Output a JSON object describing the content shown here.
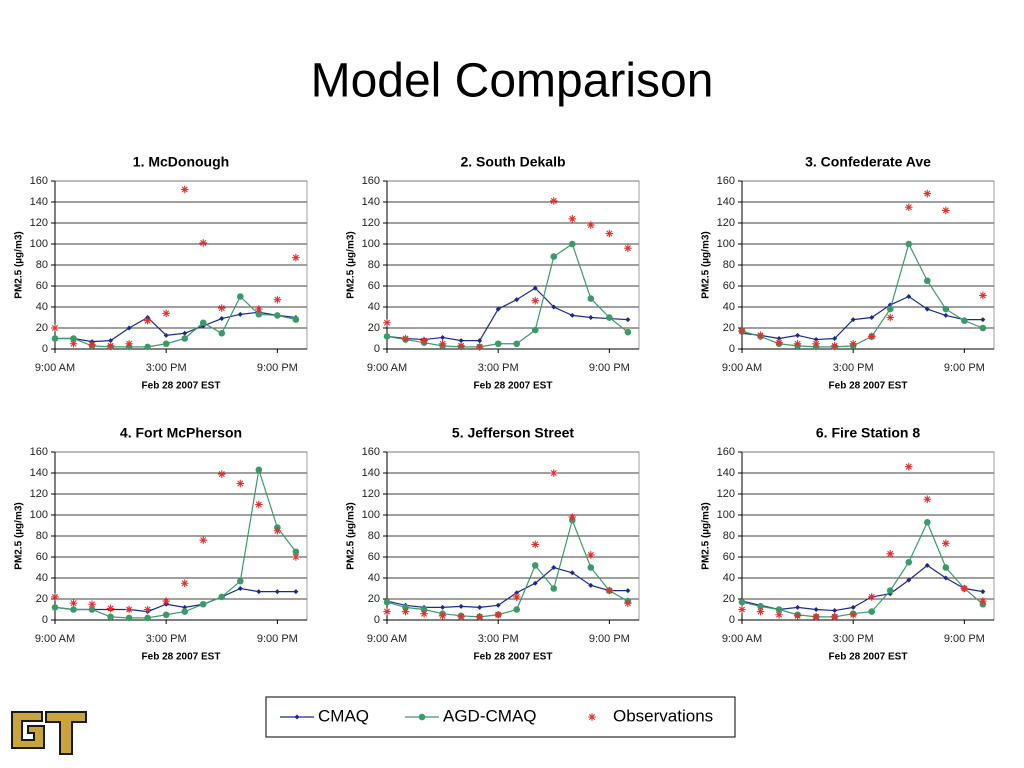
{
  "title": "Model Comparison",
  "chart_data": [
    {
      "type": "line",
      "title": "1. McDonough",
      "x_label": "Feb 28 2007 EST",
      "y_label": "PM2.5 (µg/m3)",
      "x": [
        9,
        10,
        11,
        12,
        13,
        14,
        15,
        16,
        17,
        18,
        19,
        20,
        21,
        22
      ],
      "xlim": [
        9,
        22.6
      ],
      "xticks": [
        {
          "value": 9,
          "label": "9:00 AM"
        },
        {
          "value": 15,
          "label": "3:00 PM"
        },
        {
          "value": 21,
          "label": "9:00 PM"
        }
      ],
      "ylim": [
        0,
        160
      ],
      "yticks": [
        0,
        20,
        40,
        60,
        80,
        100,
        120,
        140,
        160
      ],
      "grid": true,
      "series": [
        {
          "name": "CMAQ",
          "color": "#1c2a8a",
          "marker": "diamond",
          "values": [
            10,
            10,
            7,
            8,
            20,
            30,
            13,
            15,
            22,
            29,
            33,
            35,
            32,
            30
          ]
        },
        {
          "name": "AGD-CMAQ",
          "color": "#3c9a6a",
          "marker": "circle",
          "values": [
            10,
            10,
            3,
            2,
            2,
            2,
            5,
            10,
            25,
            15,
            50,
            33,
            32,
            28
          ]
        },
        {
          "name": "Observations",
          "color": "#e03030",
          "marker": "asterisk",
          "line": false,
          "values": [
            20,
            5,
            4,
            3,
            5,
            27,
            34,
            152,
            101,
            39,
            null,
            38,
            47,
            87
          ]
        }
      ]
    },
    {
      "type": "line",
      "title": "2. South Dekalb",
      "x_label": "Feb 28 2007 EST",
      "y_label": "PM2.5 (µg/m3)",
      "x": [
        9,
        10,
        11,
        12,
        13,
        14,
        15,
        16,
        17,
        18,
        19,
        20,
        21,
        22
      ],
      "xlim": [
        9,
        22.6
      ],
      "xticks": [
        {
          "value": 9,
          "label": "9:00 AM"
        },
        {
          "value": 15,
          "label": "3:00 PM"
        },
        {
          "value": 21,
          "label": "9:00 PM"
        }
      ],
      "ylim": [
        0,
        160
      ],
      "yticks": [
        0,
        20,
        40,
        60,
        80,
        100,
        120,
        140,
        160
      ],
      "grid": true,
      "series": [
        {
          "name": "CMAQ",
          "color": "#1c2a8a",
          "marker": "diamond",
          "values": [
            12,
            10,
            9,
            11,
            8,
            8,
            38,
            47,
            58,
            40,
            32,
            30,
            29,
            28
          ]
        },
        {
          "name": "AGD-CMAQ",
          "color": "#3c9a6a",
          "marker": "circle",
          "values": [
            12,
            9,
            6,
            3,
            2,
            2,
            5,
            5,
            18,
            88,
            100,
            48,
            30,
            16
          ]
        },
        {
          "name": "Observations",
          "color": "#e03030",
          "marker": "asterisk",
          "line": false,
          "values": [
            25,
            10,
            8,
            5,
            3,
            2,
            null,
            null,
            46,
            141,
            124,
            118,
            110,
            96
          ]
        }
      ]
    },
    {
      "type": "line",
      "title": "3. Confederate Ave",
      "x_label": "Feb 28 2007 EST",
      "y_label": "PM2.5 (µg/m3)",
      "x": [
        9,
        10,
        11,
        12,
        13,
        14,
        15,
        16,
        17,
        18,
        19,
        20,
        21,
        22
      ],
      "xlim": [
        9,
        22.6
      ],
      "xticks": [
        {
          "value": 9,
          "label": "9:00 AM"
        },
        {
          "value": 15,
          "label": "3:00 PM"
        },
        {
          "value": 21,
          "label": "9:00 PM"
        }
      ],
      "ylim": [
        0,
        160
      ],
      "yticks": [
        0,
        20,
        40,
        60,
        80,
        100,
        120,
        140,
        160
      ],
      "grid": true,
      "series": [
        {
          "name": "CMAQ",
          "color": "#1c2a8a",
          "marker": "diamond",
          "values": [
            15,
            13,
            10,
            13,
            9,
            10,
            28,
            30,
            42,
            50,
            38,
            32,
            28,
            28
          ]
        },
        {
          "name": "AGD-CMAQ",
          "color": "#3c9a6a",
          "marker": "circle",
          "values": [
            17,
            12,
            5,
            3,
            2,
            2,
            3,
            12,
            38,
            100,
            65,
            38,
            27,
            20
          ]
        },
        {
          "name": "Observations",
          "color": "#e03030",
          "marker": "asterisk",
          "line": false,
          "values": [
            17,
            13,
            6,
            5,
            5,
            3,
            5,
            12,
            30,
            135,
            148,
            132,
            null,
            51
          ]
        }
      ]
    },
    {
      "type": "line",
      "title": "4. Fort McPherson",
      "x_label": "Feb 28 2007 EST",
      "y_label": "PM2.5 (µg/m3)",
      "x": [
        9,
        10,
        11,
        12,
        13,
        14,
        15,
        16,
        17,
        18,
        19,
        20,
        21,
        22
      ],
      "xlim": [
        9,
        22.6
      ],
      "xticks": [
        {
          "value": 9,
          "label": "9:00 AM"
        },
        {
          "value": 15,
          "label": "3:00 PM"
        },
        {
          "value": 21,
          "label": "9:00 PM"
        }
      ],
      "ylim": [
        0,
        160
      ],
      "yticks": [
        0,
        20,
        40,
        60,
        80,
        100,
        120,
        140,
        160
      ],
      "grid": true,
      "series": [
        {
          "name": "CMAQ",
          "color": "#1c2a8a",
          "marker": "diamond",
          "values": [
            12,
            10,
            10,
            10,
            10,
            8,
            15,
            12,
            15,
            22,
            30,
            27,
            27,
            27
          ]
        },
        {
          "name": "AGD-CMAQ",
          "color": "#3c9a6a",
          "marker": "circle",
          "values": [
            12,
            10,
            10,
            3,
            2,
            2,
            5,
            8,
            15,
            22,
            37,
            143,
            88,
            65
          ]
        },
        {
          "name": "Observations",
          "color": "#e03030",
          "marker": "asterisk",
          "line": false,
          "values": [
            22,
            16,
            15,
            11,
            10,
            10,
            18,
            35,
            76,
            139,
            130,
            110,
            85,
            60
          ]
        }
      ]
    },
    {
      "type": "line",
      "title": "5. Jefferson Street",
      "x_label": "Feb 28 2007 EST",
      "y_label": "PM2.5 (µg/m3)",
      "x": [
        9,
        10,
        11,
        12,
        13,
        14,
        15,
        16,
        17,
        18,
        19,
        20,
        21,
        22
      ],
      "xlim": [
        9,
        22.6
      ],
      "xticks": [
        {
          "value": 9,
          "label": "9:00 AM"
        },
        {
          "value": 15,
          "label": "3:00 PM"
        },
        {
          "value": 21,
          "label": "9:00 PM"
        }
      ],
      "ylim": [
        0,
        160
      ],
      "yticks": [
        0,
        20,
        40,
        60,
        80,
        100,
        120,
        140,
        160
      ],
      "grid": true,
      "series": [
        {
          "name": "CMAQ",
          "color": "#1c2a8a",
          "marker": "diamond",
          "values": [
            18,
            14,
            12,
            12,
            13,
            12,
            14,
            26,
            35,
            50,
            45,
            33,
            28,
            28
          ]
        },
        {
          "name": "AGD-CMAQ",
          "color": "#3c9a6a",
          "marker": "circle",
          "values": [
            17,
            12,
            10,
            6,
            4,
            3,
            5,
            10,
            52,
            30,
            95,
            50,
            28,
            18
          ]
        },
        {
          "name": "Observations",
          "color": "#e03030",
          "marker": "asterisk",
          "line": false,
          "values": [
            8,
            8,
            6,
            4,
            3,
            3,
            5,
            22,
            72,
            140,
            98,
            62,
            28,
            16
          ]
        }
      ]
    },
    {
      "type": "line",
      "title": "6. Fire Station 8",
      "x_label": "Feb 28 2007 EST",
      "y_label": "PM2.5 (µg/m3)",
      "x": [
        9,
        10,
        11,
        12,
        13,
        14,
        15,
        16,
        17,
        18,
        19,
        20,
        21,
        22
      ],
      "xlim": [
        9,
        22.6
      ],
      "xticks": [
        {
          "value": 9,
          "label": "9:00 AM"
        },
        {
          "value": 15,
          "label": "3:00 PM"
        },
        {
          "value": 21,
          "label": "9:00 PM"
        }
      ],
      "ylim": [
        0,
        160
      ],
      "yticks": [
        0,
        20,
        40,
        60,
        80,
        100,
        120,
        140,
        160
      ],
      "grid": true,
      "series": [
        {
          "name": "CMAQ",
          "color": "#1c2a8a",
          "marker": "diamond",
          "values": [
            18,
            14,
            10,
            12,
            10,
            9,
            12,
            22,
            25,
            38,
            52,
            40,
            30,
            27
          ]
        },
        {
          "name": "AGD-CMAQ",
          "color": "#3c9a6a",
          "marker": "circle",
          "values": [
            17,
            13,
            10,
            5,
            3,
            3,
            6,
            8,
            28,
            55,
            93,
            50,
            30,
            15
          ]
        },
        {
          "name": "Observations",
          "color": "#e03030",
          "marker": "asterisk",
          "line": false,
          "values": [
            10,
            8,
            5,
            4,
            3,
            3,
            5,
            22,
            63,
            146,
            115,
            73,
            30,
            18
          ]
        }
      ]
    }
  ]
}
